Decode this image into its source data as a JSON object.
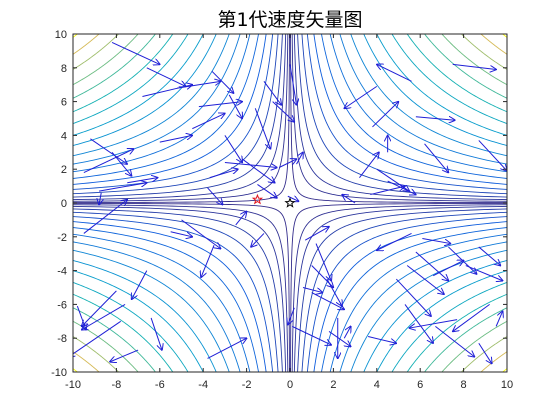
{
  "chart_data": {
    "type": "contour+quiver",
    "title": "第1代速度矢量图",
    "xlabel": "",
    "ylabel": "",
    "xlim": [
      -10,
      10
    ],
    "ylim": [
      -10,
      10
    ],
    "x_ticks": [
      "-10",
      "-8",
      "-6",
      "-4",
      "-2",
      "0",
      "2",
      "4",
      "6",
      "8",
      "10"
    ],
    "y_ticks": [
      "-10",
      "-8",
      "-6",
      "-4",
      "-2",
      "0",
      "2",
      "4",
      "6",
      "8",
      "10"
    ],
    "x_tick_values": [
      -10,
      -8,
      -6,
      -4,
      -2,
      0,
      2,
      4,
      6,
      8,
      10
    ],
    "y_tick_values": [
      -10,
      -8,
      -6,
      -4,
      -2,
      0,
      2,
      4,
      6,
      8,
      10
    ],
    "contour_function": "abs(x*y)",
    "contour_levels": [
      0.25,
      1,
      2,
      3.5,
      5.5,
      8,
      11,
      14.5,
      18.5,
      23,
      28,
      34,
      40,
      47,
      54,
      62,
      70,
      79,
      88,
      98
    ],
    "grid": false,
    "markers": [
      {
        "name": "red star",
        "x": -1.5,
        "y": 0.2,
        "color": "#e0141e"
      },
      {
        "name": "black star",
        "x": 0.0,
        "y": 0.0,
        "color": "#000000"
      }
    ],
    "arrow_color": "#1f1fd6",
    "arrows": [
      {
        "x": -8.2,
        "y": 9.5,
        "u": 2.2,
        "v": -1.3
      },
      {
        "x": -6.6,
        "y": 8.0,
        "u": 1.8,
        "v": -1.1
      },
      {
        "x": -6.8,
        "y": 6.3,
        "u": 2.3,
        "v": 0.7
      },
      {
        "x": -5.2,
        "y": 6.8,
        "u": 2.0,
        "v": 0.4
      },
      {
        "x": -4.2,
        "y": 5.7,
        "u": 2.0,
        "v": 0.3
      },
      {
        "x": -4.5,
        "y": 4.4,
        "u": 1.5,
        "v": 0.9
      },
      {
        "x": -6.0,
        "y": 3.6,
        "u": 1.5,
        "v": 0.4
      },
      {
        "x": -9.2,
        "y": 3.8,
        "u": 1.7,
        "v": -1.5
      },
      {
        "x": -8.2,
        "y": 3.0,
        "u": 0.9,
        "v": -1.4
      },
      {
        "x": -9.5,
        "y": 1.8,
        "u": 2.3,
        "v": 1.4
      },
      {
        "x": -8.8,
        "y": 0.7,
        "u": 2.2,
        "v": 0.5
      },
      {
        "x": -7.5,
        "y": 1.2,
        "u": 1.4,
        "v": 0.3
      },
      {
        "x": -3.6,
        "y": 7.8,
        "u": 1.0,
        "v": -1.3
      },
      {
        "x": -2.8,
        "y": 6.4,
        "u": 0.6,
        "v": -1.4
      },
      {
        "x": -3.0,
        "y": 4.0,
        "u": 0.8,
        "v": -1.6
      },
      {
        "x": -1.6,
        "y": 5.6,
        "u": 0.7,
        "v": -2.4
      },
      {
        "x": -1.2,
        "y": 7.2,
        "u": 0.8,
        "v": -1.4
      },
      {
        "x": -0.8,
        "y": 6.0,
        "u": 1.0,
        "v": -1.2
      },
      {
        "x": 0.0,
        "y": 8.2,
        "u": 0.3,
        "v": -2.4
      },
      {
        "x": -3.0,
        "y": 2.4,
        "u": 2.4,
        "v": -0.3
      },
      {
        "x": -3.7,
        "y": 1.5,
        "u": 1.3,
        "v": 0.5
      },
      {
        "x": -2.2,
        "y": 2.6,
        "u": 1.5,
        "v": -1.4
      },
      {
        "x": -3.8,
        "y": 0.9,
        "u": 0.7,
        "v": -1.0
      },
      {
        "x": -1.5,
        "y": 1.1,
        "u": 0.9,
        "v": -0.8
      },
      {
        "x": -0.1,
        "y": 0.4,
        "u": 0.5,
        "v": -0.3
      },
      {
        "x": -0.5,
        "y": 2.1,
        "u": 0.8,
        "v": 0.5
      },
      {
        "x": 0.3,
        "y": 2.3,
        "u": 0.3,
        "v": 0.7
      },
      {
        "x": 4.0,
        "y": 6.9,
        "u": -1.5,
        "v": -1.3
      },
      {
        "x": 5.6,
        "y": 7.2,
        "u": -1.6,
        "v": 1.0
      },
      {
        "x": 7.5,
        "y": 8.2,
        "u": 2.0,
        "v": -0.3
      },
      {
        "x": 5.8,
        "y": 5.1,
        "u": 1.8,
        "v": -0.2
      },
      {
        "x": 3.8,
        "y": 4.5,
        "u": 1.2,
        "v": 1.5
      },
      {
        "x": 4.5,
        "y": 3.0,
        "u": 0.0,
        "v": 1.0
      },
      {
        "x": 6.2,
        "y": 3.5,
        "u": 1.1,
        "v": -1.7
      },
      {
        "x": 8.7,
        "y": 3.7,
        "u": 1.3,
        "v": -1.8
      },
      {
        "x": 4.0,
        "y": 2.0,
        "u": 1.5,
        "v": -1.3
      },
      {
        "x": 4.5,
        "y": 1.3,
        "u": 1.3,
        "v": -0.8
      },
      {
        "x": 3.7,
        "y": 0.5,
        "u": 1.6,
        "v": 0.5
      },
      {
        "x": 3.0,
        "y": 0.0,
        "u": -0.6,
        "v": 0.5
      },
      {
        "x": 3.2,
        "y": 1.5,
        "u": 0.9,
        "v": 1.5
      },
      {
        "x": -9.5,
        "y": -1.8,
        "u": 2.0,
        "v": 2.0
      },
      {
        "x": -8.7,
        "y": 0.6,
        "u": -0.1,
        "v": -0.7
      },
      {
        "x": -5.0,
        "y": -1.0,
        "u": 1.8,
        "v": -1.7
      },
      {
        "x": -5.5,
        "y": -1.7,
        "u": 1.0,
        "v": -0.3
      },
      {
        "x": -3.5,
        "y": -2.5,
        "u": -0.6,
        "v": -1.9
      },
      {
        "x": -2.5,
        "y": -1.3,
        "u": 0.5,
        "v": 0.8
      },
      {
        "x": -1.2,
        "y": -1.8,
        "u": -0.6,
        "v": -0.8
      },
      {
        "x": -6.6,
        "y": -4.0,
        "u": -0.7,
        "v": -1.7
      },
      {
        "x": -8.0,
        "y": -5.2,
        "u": -1.6,
        "v": -2.1
      },
      {
        "x": -7.6,
        "y": -6.0,
        "u": -2.0,
        "v": -1.5
      },
      {
        "x": -9.8,
        "y": -6.1,
        "u": 0.4,
        "v": -1.4
      },
      {
        "x": -7.8,
        "y": -7.0,
        "u": -2.4,
        "v": -2.1
      },
      {
        "x": -6.4,
        "y": -6.8,
        "u": 0.5,
        "v": -1.9
      },
      {
        "x": -7.0,
        "y": -8.7,
        "u": -1.3,
        "v": -0.7
      },
      {
        "x": -3.8,
        "y": -9.2,
        "u": 1.8,
        "v": 1.2
      },
      {
        "x": 0.7,
        "y": -2.2,
        "u": 1.1,
        "v": 0.8
      },
      {
        "x": 1.2,
        "y": -2.4,
        "u": 0.7,
        "v": -2.2
      },
      {
        "x": 1.0,
        "y": -3.7,
        "u": 1.0,
        "v": -1.3
      },
      {
        "x": 1.7,
        "y": -4.5,
        "u": 0.7,
        "v": -1.6
      },
      {
        "x": 0.6,
        "y": -5.0,
        "u": 0.9,
        "v": -0.3
      },
      {
        "x": 1.0,
        "y": -5.3,
        "u": 1.5,
        "v": -1.0
      },
      {
        "x": 0.2,
        "y": -6.2,
        "u": -0.3,
        "v": -1.0
      },
      {
        "x": 0.1,
        "y": -7.3,
        "u": 1.8,
        "v": -1.1
      },
      {
        "x": 1.8,
        "y": -7.6,
        "u": 1.0,
        "v": -0.9
      },
      {
        "x": 2.2,
        "y": -6.8,
        "u": 0.0,
        "v": -2.4
      },
      {
        "x": 2.5,
        "y": -8.0,
        "u": 0.3,
        "v": 0.7
      },
      {
        "x": 3.6,
        "y": -7.9,
        "u": 1.3,
        "v": -0.4
      },
      {
        "x": 4.9,
        "y": -4.5,
        "u": 1.6,
        "v": -2.2
      },
      {
        "x": 5.4,
        "y": -3.7,
        "u": 1.7,
        "v": -1.7
      },
      {
        "x": 5.8,
        "y": -2.9,
        "u": 1.5,
        "v": -1.7
      },
      {
        "x": 6.1,
        "y": -2.1,
        "u": 1.3,
        "v": -0.3
      },
      {
        "x": 5.6,
        "y": -1.8,
        "u": -1.6,
        "v": -1.0
      },
      {
        "x": 6.6,
        "y": -4.3,
        "u": 1.4,
        "v": 0.9
      },
      {
        "x": 7.3,
        "y": -2.6,
        "u": 1.3,
        "v": -1.6
      },
      {
        "x": 8.1,
        "y": -3.7,
        "u": 1.7,
        "v": -0.9
      },
      {
        "x": 8.7,
        "y": -2.6,
        "u": 1.0,
        "v": -1.1
      },
      {
        "x": 9.2,
        "y": -6.0,
        "u": -1.7,
        "v": -1.6
      },
      {
        "x": 7.7,
        "y": -6.9,
        "u": -2.2,
        "v": -0.5
      },
      {
        "x": 6.7,
        "y": -7.3,
        "u": 1.8,
        "v": -1.8
      },
      {
        "x": 9.5,
        "y": -7.3,
        "u": 0.3,
        "v": 0.9
      },
      {
        "x": 5.3,
        "y": -6.0,
        "u": 1.3,
        "v": -2.3
      },
      {
        "x": 8.7,
        "y": -8.3,
        "u": 0.6,
        "v": -1.2
      }
    ]
  }
}
